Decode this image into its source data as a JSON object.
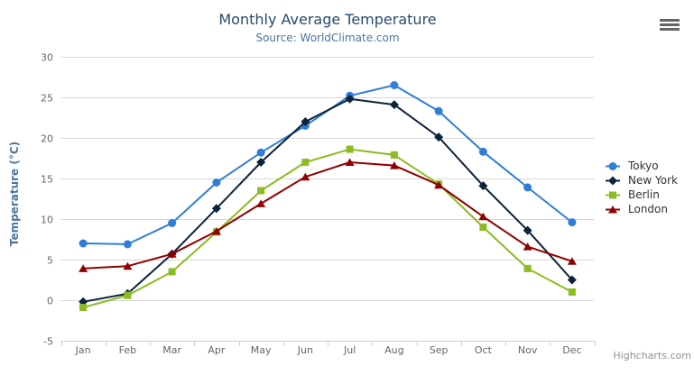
{
  "header": {
    "title": "Monthly Average Temperature",
    "subtitle": "Source: WorldClimate.com"
  },
  "credits": "Highcharts.com",
  "export_menu": "hamburger-icon",
  "chart_data": {
    "type": "line",
    "title": "Monthly Average Temperature",
    "subtitle": "Source: WorldClimate.com",
    "categories": [
      "Jan",
      "Feb",
      "Mar",
      "Apr",
      "May",
      "Jun",
      "Jul",
      "Aug",
      "Sep",
      "Oct",
      "Nov",
      "Dec"
    ],
    "xlabel": "",
    "ylabel": "Temperature (°C)",
    "ylim": [
      -5,
      30
    ],
    "ytick_interval": 5,
    "yticks": [
      -5,
      0,
      5,
      10,
      15,
      20,
      25,
      30
    ],
    "grid": true,
    "legend_position": "right",
    "axis_colors": {
      "grid": "#d8d8d8",
      "axis_line": "#c0d0e0",
      "tick": "#c0d0e0",
      "label": "#666666",
      "axis_title": "#4d759e"
    },
    "series": [
      {
        "name": "Tokyo",
        "color": "#2f7ed8",
        "marker": "circle",
        "values": [
          7.0,
          6.9,
          9.5,
          14.5,
          18.2,
          21.5,
          25.2,
          26.5,
          23.3,
          18.3,
          13.9,
          9.6
        ]
      },
      {
        "name": "New York",
        "color": "#0d233a",
        "marker": "diamond",
        "values": [
          -0.2,
          0.8,
          5.7,
          11.3,
          17.0,
          22.0,
          24.8,
          24.1,
          20.1,
          14.1,
          8.6,
          2.5
        ]
      },
      {
        "name": "Berlin",
        "color": "#8bbc21",
        "marker": "square",
        "values": [
          -0.9,
          0.6,
          3.5,
          8.4,
          13.5,
          17.0,
          18.6,
          17.9,
          14.3,
          9.0,
          3.9,
          1.0
        ]
      },
      {
        "name": "London",
        "color": "#910000",
        "marker": "triangle",
        "values": [
          3.9,
          4.2,
          5.7,
          8.5,
          11.9,
          15.2,
          17.0,
          16.6,
          14.2,
          10.3,
          6.6,
          4.8
        ]
      }
    ]
  }
}
